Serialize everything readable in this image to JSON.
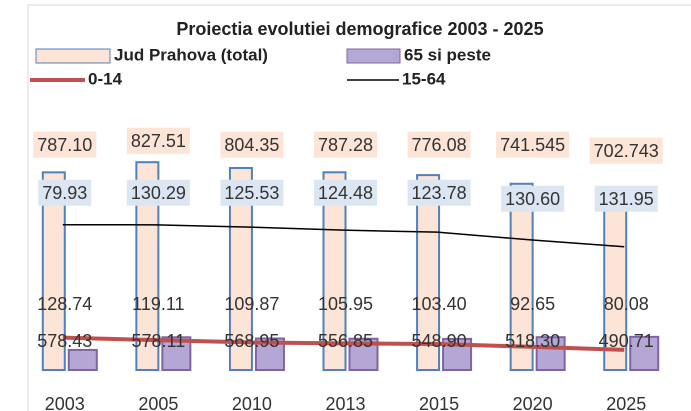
{
  "chart_data": {
    "type": "bar-line",
    "title": "Proiectia evolutiei demografice 2003 - 2025",
    "categories": [
      "2003",
      "2005",
      "2010",
      "2013",
      "2015",
      "2020",
      "2025"
    ],
    "ylim": [
      0,
      900
    ],
    "series": [
      {
        "name": "Jud Prahova (total)",
        "kind": "bar",
        "color": "#fce4d6",
        "border": "#4f81bd",
        "values": [
          787.1,
          827.51,
          804.35,
          787.28,
          776.08,
          741.545,
          702.743
        ],
        "value_labels": [
          "787.10",
          "827.51",
          "804.35",
          "787.28",
          "776.08",
          "741.545",
          "702.743"
        ]
      },
      {
        "name": "65 si peste",
        "kind": "bar",
        "color": "#b4a7d6",
        "border": "#8064a2",
        "values": [
          79.93,
          130.29,
          125.53,
          124.48,
          123.78,
          130.6,
          131.95
        ],
        "value_labels": [
          "79.93",
          "130.29",
          "125.53",
          "124.48",
          "123.78",
          "130.60",
          "131.95"
        ]
      },
      {
        "name": "0-14",
        "kind": "line",
        "color": "#c0504d",
        "values": [
          128.74,
          119.11,
          109.87,
          105.95,
          103.4,
          92.65,
          80.08
        ],
        "value_labels": [
          "128.74",
          "119.11",
          "109.87",
          "105.95",
          "103.40",
          "92.65",
          "80.08"
        ]
      },
      {
        "name": "15-64",
        "kind": "line",
        "color": "#000000",
        "values": [
          578.43,
          578.11,
          568.95,
          556.85,
          548.9,
          518.3,
          490.71
        ],
        "value_labels": [
          "578.43",
          "578.11",
          "568.95",
          "556.85",
          "548.90",
          "518.30",
          "490.71"
        ]
      }
    ]
  }
}
